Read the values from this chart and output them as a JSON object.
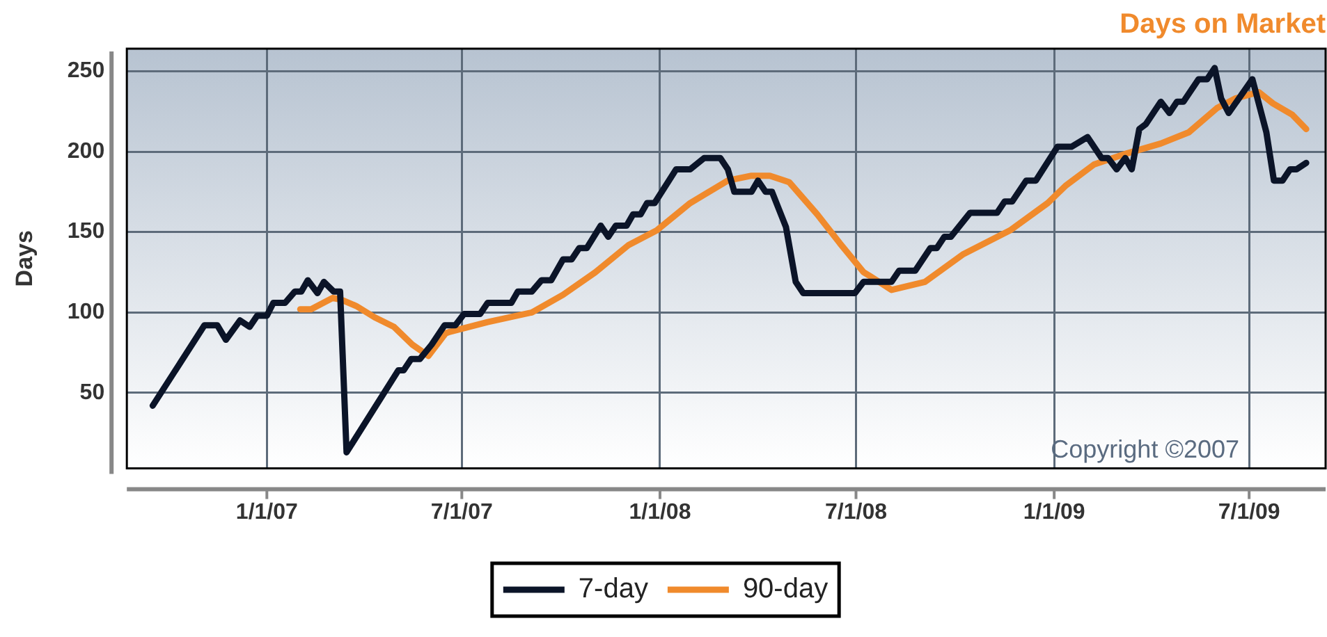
{
  "chart_data": {
    "type": "line",
    "title": "Days on Market",
    "ylabel": "Days",
    "annotations": [
      "Copyright ©2007"
    ],
    "xlim": [
      "2006-08-24",
      "2009-09-10"
    ],
    "xticks": [
      {
        "value": "2007-01-01",
        "label": "1/1/07"
      },
      {
        "value": "2007-07-01",
        "label": "7/1/07"
      },
      {
        "value": "2008-01-01",
        "label": "1/1/08"
      },
      {
        "value": "2008-07-01",
        "label": "7/1/08"
      },
      {
        "value": "2009-01-01",
        "label": "1/1/09"
      },
      {
        "value": "2009-07-01",
        "label": "7/1/09"
      }
    ],
    "ylim": [
      3,
      264
    ],
    "yticks": [
      50,
      100,
      150,
      200,
      250
    ],
    "grid": true,
    "legend": "bottom",
    "marker": "none",
    "line_style": "solid",
    "series": [
      {
        "name": "7-day",
        "color": "#0b1428",
        "x": [
          "2006-09-17",
          "2006-11-04",
          "2006-11-16",
          "2006-11-24",
          "2006-12-07",
          "2006-12-16",
          "2006-12-23",
          "2007-01-01",
          "2007-01-07",
          "2007-01-18",
          "2007-01-27",
          "2007-02-02",
          "2007-02-08",
          "2007-02-17",
          "2007-02-23",
          "2007-03-04",
          "2007-03-10",
          "2007-03-16",
          "2007-05-03",
          "2007-05-08",
          "2007-05-15",
          "2007-05-23",
          "2007-06-03",
          "2007-06-15",
          "2007-06-25",
          "2007-07-03",
          "2007-07-18",
          "2007-07-25",
          "2007-08-16",
          "2007-08-22",
          "2007-09-04",
          "2007-09-13",
          "2007-09-22",
          "2007-10-03",
          "2007-10-11",
          "2007-10-18",
          "2007-10-25",
          "2007-11-07",
          "2007-11-14",
          "2007-11-21",
          "2007-12-01",
          "2007-12-07",
          "2007-12-14",
          "2007-12-20",
          "2007-12-27",
          "2008-01-16",
          "2008-01-29",
          "2008-02-11",
          "2008-02-26",
          "2008-03-04",
          "2008-03-10",
          "2008-03-26",
          "2008-04-01",
          "2008-04-08",
          "2008-04-14",
          "2008-04-27",
          "2008-05-06",
          "2008-05-13",
          "2008-06-30",
          "2008-07-08",
          "2008-08-03",
          "2008-08-10",
          "2008-08-25",
          "2008-09-08",
          "2008-09-14",
          "2008-09-21",
          "2008-09-27",
          "2008-10-15",
          "2008-11-09",
          "2008-11-16",
          "2008-11-23",
          "2008-12-06",
          "2008-12-15",
          "2009-01-04",
          "2009-01-17",
          "2009-02-01",
          "2009-02-14",
          "2009-02-20",
          "2009-02-28",
          "2009-03-08",
          "2009-03-14",
          "2009-03-21",
          "2009-03-27",
          "2009-04-10",
          "2009-04-18",
          "2009-04-25",
          "2009-05-01",
          "2009-05-15",
          "2009-05-23",
          "2009-05-30",
          "2009-06-05",
          "2009-06-12",
          "2009-07-04",
          "2009-07-17",
          "2009-07-24",
          "2009-08-01",
          "2009-08-08",
          "2009-08-14",
          "2009-08-23"
        ],
        "values": [
          42,
          92,
          92,
          83,
          95,
          91,
          98,
          98,
          106,
          106,
          113,
          113,
          120,
          112,
          119,
          113,
          113,
          13,
          64,
          64,
          71,
          71,
          80,
          92,
          92,
          99,
          99,
          106,
          106,
          113,
          113,
          120,
          120,
          133,
          133,
          140,
          140,
          154,
          147,
          154,
          154,
          161,
          161,
          168,
          168,
          189,
          189,
          196,
          196,
          189,
          175,
          175,
          182,
          175,
          175,
          153,
          119,
          112,
          112,
          119,
          119,
          126,
          126,
          140,
          140,
          147,
          147,
          162,
          162,
          169,
          169,
          182,
          182,
          203,
          203,
          209,
          196,
          196,
          189,
          196,
          189,
          214,
          217,
          231,
          224,
          231,
          231,
          245,
          245,
          252,
          233,
          224,
          245,
          212,
          182,
          182,
          189,
          189,
          193
        ]
      },
      {
        "name": "90-day",
        "color": "#f08a2c",
        "x": [
          "2007-02-01",
          "2007-02-11",
          "2007-03-03",
          "2007-03-11",
          "2007-03-25",
          "2007-04-11",
          "2007-04-29",
          "2007-05-16",
          "2007-05-31",
          "2007-06-16",
          "2007-06-20",
          "2007-07-25",
          "2007-09-04",
          "2007-10-03",
          "2007-11-02",
          "2007-12-03",
          "2007-12-29",
          "2008-01-29",
          "2008-03-04",
          "2008-03-26",
          "2008-04-12",
          "2008-04-30",
          "2008-05-26",
          "2008-06-16",
          "2008-07-08",
          "2008-07-13",
          "2008-08-03",
          "2008-09-03",
          "2008-10-08",
          "2008-11-21",
          "2008-12-26",
          "2009-01-12",
          "2009-02-07",
          "2009-03-10",
          "2009-04-10",
          "2009-05-06",
          "2009-06-01",
          "2009-06-18",
          "2009-07-10",
          "2009-07-23",
          "2009-08-10",
          "2009-08-23"
        ],
        "values": [
          102,
          102,
          109,
          108,
          104,
          97,
          91,
          80,
          73,
          87,
          88,
          94,
          100,
          111,
          125,
          142,
          151,
          168,
          182,
          185,
          185,
          181,
          161,
          143,
          125,
          123,
          114,
          119,
          136,
          151,
          168,
          179,
          192,
          199,
          205,
          212,
          227,
          233,
          237,
          230,
          223,
          214
        ]
      }
    ]
  }
}
